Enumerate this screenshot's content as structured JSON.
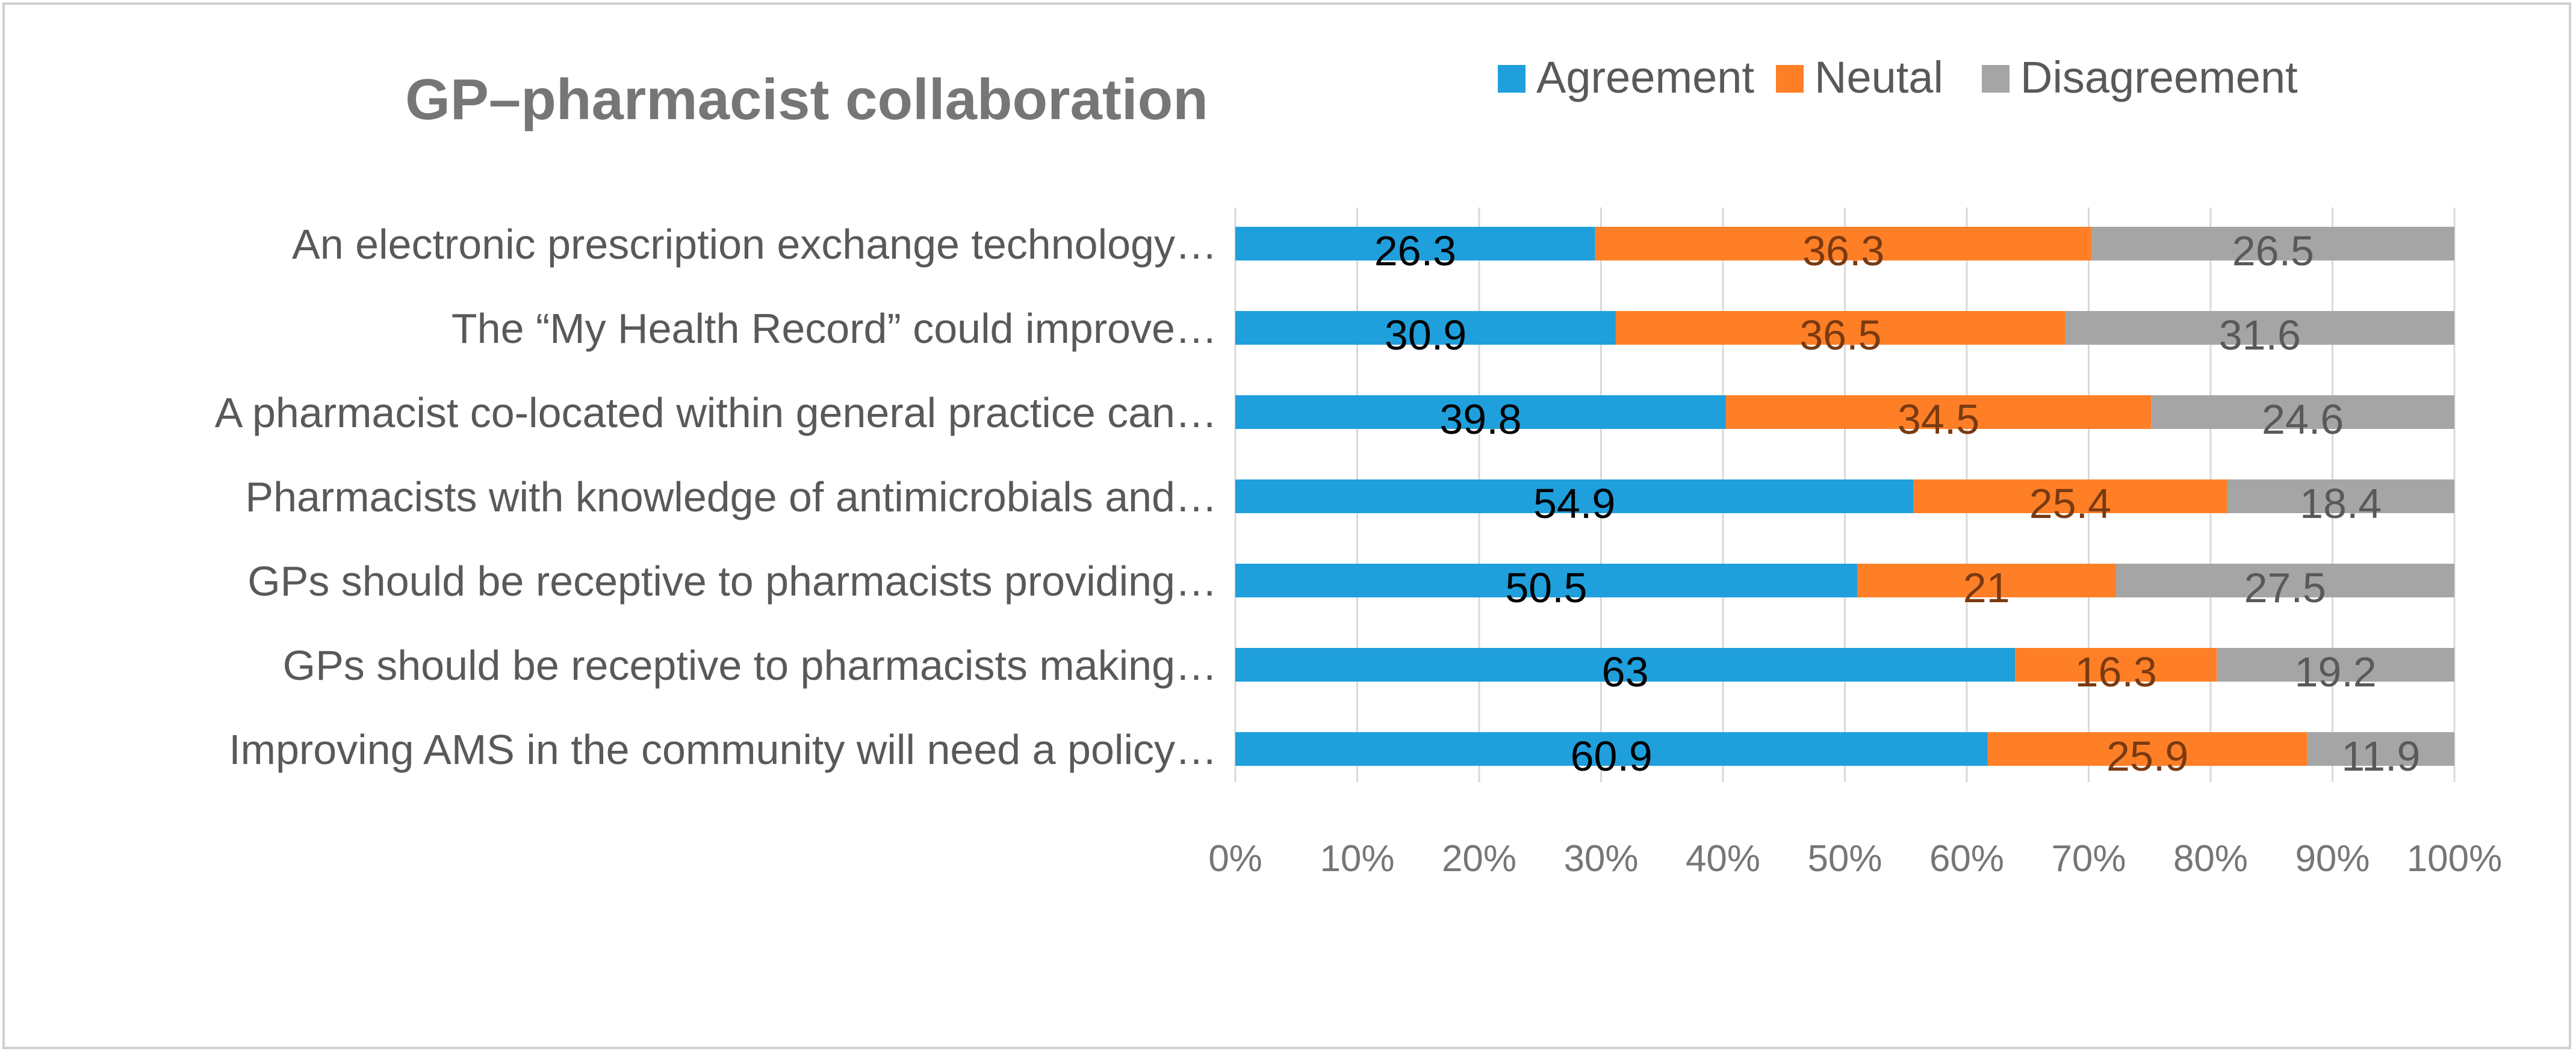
{
  "chart_data": {
    "type": "bar",
    "orientation": "horizontal",
    "stacked": "percent",
    "title": "GP–pharmacist collaboration",
    "categories": [
      "An electronic prescription exchange technology…",
      "The “My Health Record” could improve…",
      "A  pharmacist  co-located within general practice can…",
      "Pharmacists with knowledge of antimicrobials and…",
      "GPs should be receptive to pharmacists providing…",
      "GPs should be receptive to pharmacists making…",
      "Improving AMS in the community will need a policy…"
    ],
    "series": [
      {
        "name": "Agreement",
        "color": "#1f9fdc",
        "label_color": "#000000",
        "values": [
          26.3,
          30.9,
          39.8,
          54.9,
          50.5,
          63,
          60.9
        ],
        "labels": [
          "26.3",
          "30.9",
          "39.8",
          "54.9",
          "50.5",
          "63",
          "60.9"
        ]
      },
      {
        "name": "Neutal",
        "color": "#ff7f27",
        "label_color": "#7a3a10",
        "values": [
          36.3,
          36.5,
          34.5,
          25.4,
          21,
          16.3,
          25.9
        ],
        "labels": [
          "36.3",
          "36.5",
          "34.5",
          "25.4",
          "21",
          "16.3",
          "25.9"
        ]
      },
      {
        "name": "Disagreement",
        "color": "#a5a5a5",
        "label_color": "#595959",
        "values": [
          26.5,
          31.6,
          24.6,
          18.4,
          27.5,
          19.2,
          11.9
        ],
        "labels": [
          "26.5",
          "31.6",
          "24.6",
          "18.4",
          "27.5",
          "19.2",
          "11.9"
        ]
      }
    ],
    "xlabel": "",
    "ylabel": "",
    "xlim": [
      0,
      100
    ],
    "xticks": [
      "0%",
      "10%",
      "20%",
      "30%",
      "40%",
      "50%",
      "60%",
      "70%",
      "80%",
      "90%",
      "100%"
    ],
    "legend_position": "top-right",
    "grid": true,
    "grid_color": "#d9d9d9"
  }
}
